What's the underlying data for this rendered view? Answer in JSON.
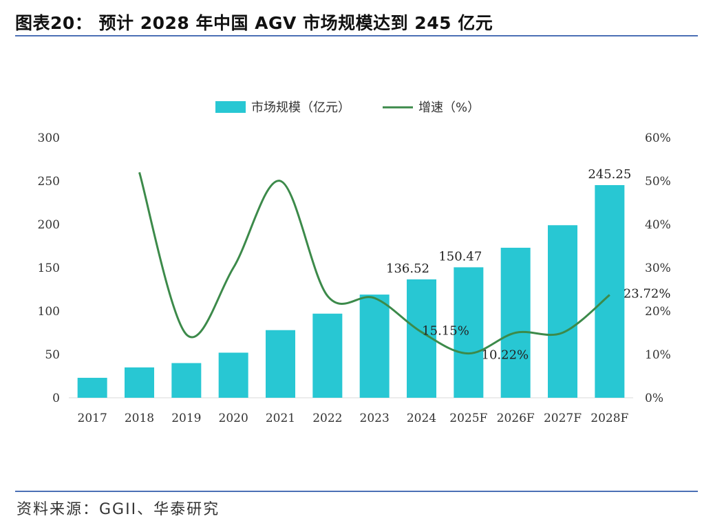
{
  "header": {
    "title": "图表20：  预计 2028 年中国 AGV 市场规模达到 245 亿元"
  },
  "footer": {
    "source": "资料来源：GGII、华泰研究"
  },
  "colors": {
    "bar": "#28c7d3",
    "line": "#3c8a4a",
    "rule": "#4a6fb5"
  },
  "chart_data": {
    "type": "bar",
    "categories": [
      "2017",
      "2018",
      "2019",
      "2020",
      "2021",
      "2022",
      "2023",
      "2024",
      "2025F",
      "2026F",
      "2027F",
      "2028F"
    ],
    "series": [
      {
        "name": "市场规模（亿元）",
        "type": "bar",
        "axis": "left",
        "values": [
          23,
          35,
          40,
          52,
          78,
          97,
          119,
          136.52,
          150.47,
          173,
          199,
          245.25
        ]
      },
      {
        "name": "增速（%）",
        "type": "line",
        "axis": "right",
        "values": [
          null,
          52,
          14.6,
          30,
          50,
          23.5,
          23,
          15.15,
          10.22,
          15,
          15,
          23.72
        ]
      }
    ],
    "data_labels": [
      {
        "series": 0,
        "index": 7,
        "text": "136.52"
      },
      {
        "series": 0,
        "index": 8,
        "text": "150.47"
      },
      {
        "series": 0,
        "index": 11,
        "text": "245.25"
      },
      {
        "series": 1,
        "index": 7,
        "text": "15.15%"
      },
      {
        "series": 1,
        "index": 8,
        "text": "10.22%"
      },
      {
        "series": 1,
        "index": 11,
        "text": "23.72%"
      }
    ],
    "y_left": {
      "min": 0,
      "max": 300,
      "ticks": [
        "0",
        "50",
        "100",
        "150",
        "200",
        "250",
        "300"
      ]
    },
    "y_right": {
      "min": 0,
      "max": 60,
      "ticks": [
        "0%",
        "10%",
        "20%",
        "30%",
        "40%",
        "50%",
        "60%"
      ]
    },
    "grid": false,
    "legend": "top-center"
  }
}
